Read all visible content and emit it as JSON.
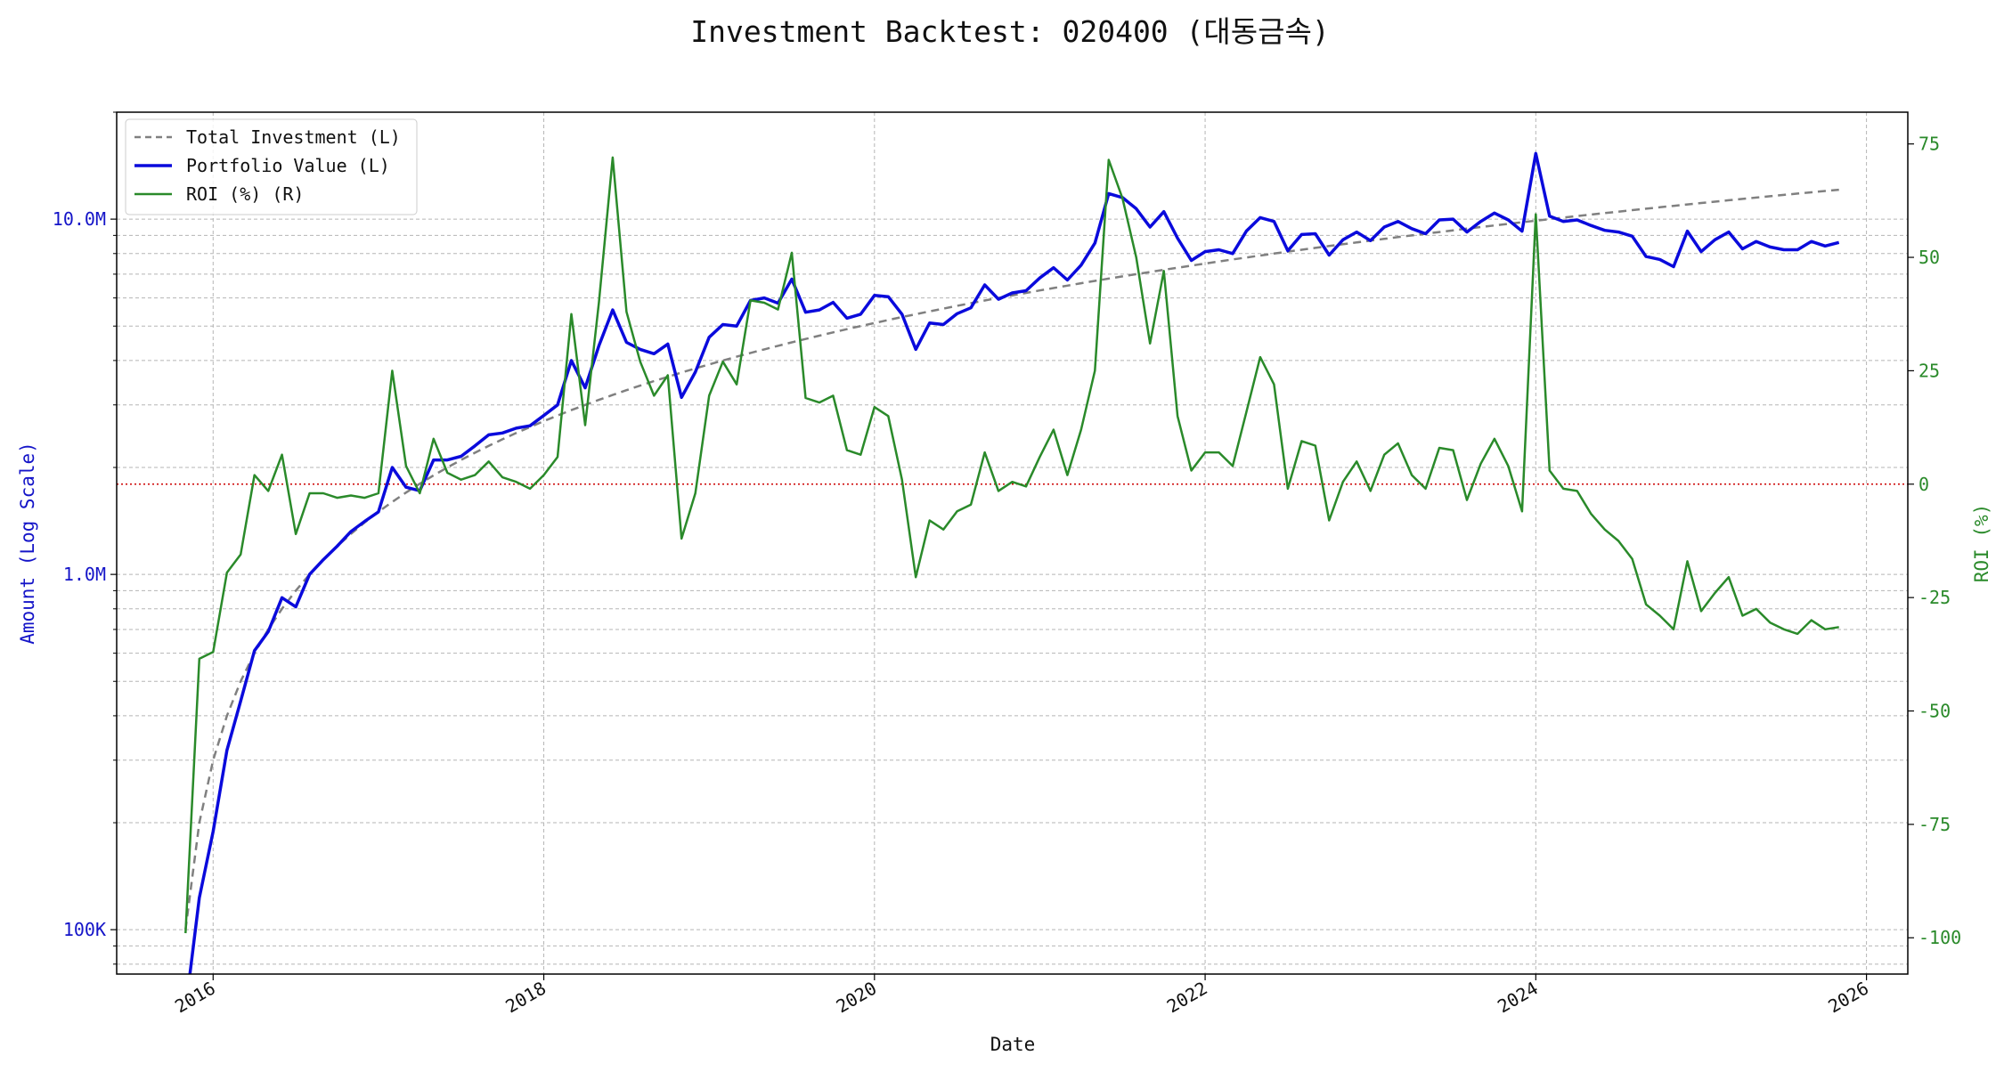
{
  "title": "Investment Backtest: 020400 (대동금속)",
  "colors": {
    "investment": "#808080",
    "portfolio": "#0a0adc",
    "roi": "#2a8a2a",
    "zero_line": "#cc0000",
    "grid": "#b5b5b5",
    "left_axis_text": "#1414c8",
    "right_axis_text": "#2a8a2a"
  },
  "chart_data": {
    "type": "line",
    "title": "Investment Backtest: 020400 (대동금속)",
    "xlabel": "Date",
    "ylabel_left": "Amount (Log Scale)",
    "ylabel_right": "ROI (%)",
    "y_left_scale": "log",
    "xlim": [
      "2015-06-01",
      "2026-04-01"
    ],
    "ylim_left": [
      75000,
      20000000
    ],
    "ylim_right": [
      -108,
      82
    ],
    "x_ticks": [
      "2016",
      "2018",
      "2020",
      "2022",
      "2024",
      "2026"
    ],
    "y_left_ticks": [
      "100K",
      "1.0M",
      "10.0M"
    ],
    "y_right_ticks": [
      "-100",
      "-75",
      "-50",
      "-25",
      "0",
      "25",
      "50",
      "75"
    ],
    "grid": true,
    "legend_position": "upper left",
    "roi_reference_line": 0,
    "x": [
      "2015-11",
      "2015-12",
      "2016-01",
      "2016-02",
      "2016-03",
      "2016-04",
      "2016-05",
      "2016-06",
      "2016-07",
      "2016-08",
      "2016-09",
      "2016-10",
      "2016-11",
      "2016-12",
      "2017-01",
      "2017-02",
      "2017-03",
      "2017-04",
      "2017-05",
      "2017-06",
      "2017-07",
      "2017-08",
      "2017-09",
      "2017-10",
      "2017-11",
      "2017-12",
      "2018-01",
      "2018-02",
      "2018-03",
      "2018-04",
      "2018-05",
      "2018-06",
      "2018-07",
      "2018-08",
      "2018-09",
      "2018-10",
      "2018-11",
      "2018-12",
      "2019-01",
      "2019-02",
      "2019-03",
      "2019-04",
      "2019-05",
      "2019-06",
      "2019-07",
      "2019-08",
      "2019-09",
      "2019-10",
      "2019-11",
      "2019-12",
      "2020-01",
      "2020-02",
      "2020-03",
      "2020-04",
      "2020-05",
      "2020-06",
      "2020-07",
      "2020-08",
      "2020-09",
      "2020-10",
      "2020-11",
      "2020-12",
      "2021-01",
      "2021-02",
      "2021-03",
      "2021-04",
      "2021-05",
      "2021-06",
      "2021-07",
      "2021-08",
      "2021-09",
      "2021-10",
      "2021-11",
      "2021-12",
      "2022-01",
      "2022-02",
      "2022-03",
      "2022-04",
      "2022-05",
      "2022-06",
      "2022-07",
      "2022-08",
      "2022-09",
      "2022-10",
      "2022-11",
      "2022-12",
      "2023-01",
      "2023-02",
      "2023-03",
      "2023-04",
      "2023-05",
      "2023-06",
      "2023-07",
      "2023-08",
      "2023-09",
      "2023-10",
      "2023-11",
      "2023-12",
      "2024-01",
      "2024-02",
      "2024-03",
      "2024-04",
      "2024-05",
      "2024-06",
      "2024-07",
      "2024-08",
      "2024-09",
      "2024-10",
      "2024-11",
      "2024-12",
      "2025-01",
      "2025-02",
      "2025-03",
      "2025-04",
      "2025-05",
      "2025-06",
      "2025-07",
      "2025-08",
      "2025-09",
      "2025-10",
      "2025-11"
    ],
    "series": [
      {
        "name": "Total Investment (L)",
        "axis": "left",
        "style": "dashed",
        "values": [
          100000,
          200000,
          300000,
          400000,
          500000,
          600000,
          700000,
          800000,
          900000,
          1000000,
          1100000,
          1200000,
          1300000,
          1400000,
          1500000,
          1600000,
          1700000,
          1800000,
          1900000,
          2000000,
          2100000,
          2200000,
          2300000,
          2400000,
          2500000,
          2600000,
          2700000,
          2800000,
          2900000,
          3000000,
          3100000,
          3200000,
          3300000,
          3400000,
          3500000,
          3600000,
          3700000,
          3800000,
          3900000,
          4000000,
          4100000,
          4200000,
          4300000,
          4400000,
          4500000,
          4600000,
          4700000,
          4800000,
          4900000,
          5000000,
          5100000,
          5200000,
          5300000,
          5400000,
          5500000,
          5600000,
          5700000,
          5800000,
          5900000,
          6000000,
          6100000,
          6200000,
          6300000,
          6400000,
          6500000,
          6600000,
          6700000,
          6800000,
          6900000,
          7000000,
          7100000,
          7200000,
          7300000,
          7400000,
          7500000,
          7600000,
          7700000,
          7800000,
          7900000,
          8000000,
          8100000,
          8200000,
          8300000,
          8400000,
          8500000,
          8600000,
          8700000,
          8800000,
          8900000,
          9000000,
          9100000,
          9200000,
          9300000,
          9400000,
          9500000,
          9600000,
          9700000,
          9800000,
          9900000,
          10000000,
          10100000,
          10200000,
          10300000,
          10400000,
          10500000,
          10600000,
          10700000,
          10800000,
          10900000,
          11000000,
          11100000,
          11200000,
          11300000,
          11400000,
          11500000,
          11600000,
          11700000,
          11800000,
          11900000,
          12000000,
          12100000
        ]
      },
      {
        "name": "Portfolio Value (L)",
        "axis": "left",
        "style": "solid",
        "values": [
          0,
          123000,
          189000,
          320000,
          440000,
          610000,
          690000,
          860000,
          810000,
          1000000,
          1100000,
          1200000,
          1320000,
          1410000,
          1500000,
          2000000,
          1760000,
          1720000,
          2100000,
          2100000,
          2150000,
          2300000,
          2470000,
          2500000,
          2580000,
          2620000,
          2800000,
          3000000,
          4000000,
          3350000,
          4400000,
          5550000,
          4500000,
          4300000,
          4180000,
          4450000,
          3150000,
          3710000,
          4650000,
          5050000,
          5000000,
          5900000,
          6000000,
          5800000,
          6780000,
          5470000,
          5550000,
          5830000,
          5260000,
          5400000,
          6100000,
          6050000,
          5400000,
          4300000,
          5100000,
          5050000,
          5420000,
          5630000,
          6530000,
          5950000,
          6200000,
          6290000,
          6830000,
          7300000,
          6740000,
          7420000,
          8560000,
          11800000,
          11500000,
          10700000,
          9500000,
          10500000,
          8840000,
          7650000,
          8100000,
          8200000,
          8000000,
          9260000,
          10100000,
          9850000,
          8150000,
          9050000,
          9100000,
          7920000,
          8750000,
          9200000,
          8700000,
          9500000,
          9850000,
          9400000,
          9100000,
          9950000,
          10000000,
          9200000,
          9850000,
          10400000,
          9950000,
          9250000,
          15300000,
          10200000,
          9850000,
          9950000,
          9600000,
          9300000,
          9200000,
          8950000,
          7850000,
          7700000,
          7350000,
          9250000,
          8100000,
          8750000,
          9200000,
          8250000,
          8650000,
          8350000,
          8200000,
          8200000,
          8650000,
          8400000,
          8600000
        ]
      },
      {
        "name": "ROI (%) (R)",
        "axis": "right",
        "style": "solid",
        "values": [
          -99,
          -38.5,
          -37,
          -19.5,
          -15.5,
          2,
          -1.5,
          6.5,
          -11,
          -2,
          -2,
          -3,
          -2.5,
          -3,
          -2,
          25,
          4,
          -2,
          10,
          2.5,
          1,
          2,
          5,
          1.5,
          0.5,
          -1,
          2,
          6,
          37.5,
          13,
          40,
          72,
          38,
          27,
          19.5,
          24,
          -12,
          -2,
          19.5,
          27,
          22,
          40.5,
          40,
          38.5,
          51,
          19,
          18,
          19.5,
          7.5,
          6.5,
          17,
          15,
          1,
          -20.5,
          -8,
          -10,
          -6,
          -4.5,
          7,
          -1.5,
          0.5,
          -0.5,
          6,
          12,
          2,
          12,
          25,
          71.5,
          63,
          50,
          31,
          47,
          15,
          3,
          7,
          7,
          4,
          16,
          28,
          22,
          -1,
          9.5,
          8.5,
          -8,
          0.5,
          5,
          -1.5,
          6.5,
          9,
          2,
          -1,
          8,
          7.5,
          -3.5,
          4.5,
          10,
          4,
          -6,
          59.5,
          3,
          -1,
          -1.5,
          -6.5,
          -10,
          -12.5,
          -16.5,
          -26.5,
          -29,
          -32,
          -17,
          -28,
          -24,
          -20.5,
          -29,
          -27.5,
          -30.5,
          -32,
          -33,
          -30,
          -32,
          -31.5
        ]
      }
    ]
  }
}
